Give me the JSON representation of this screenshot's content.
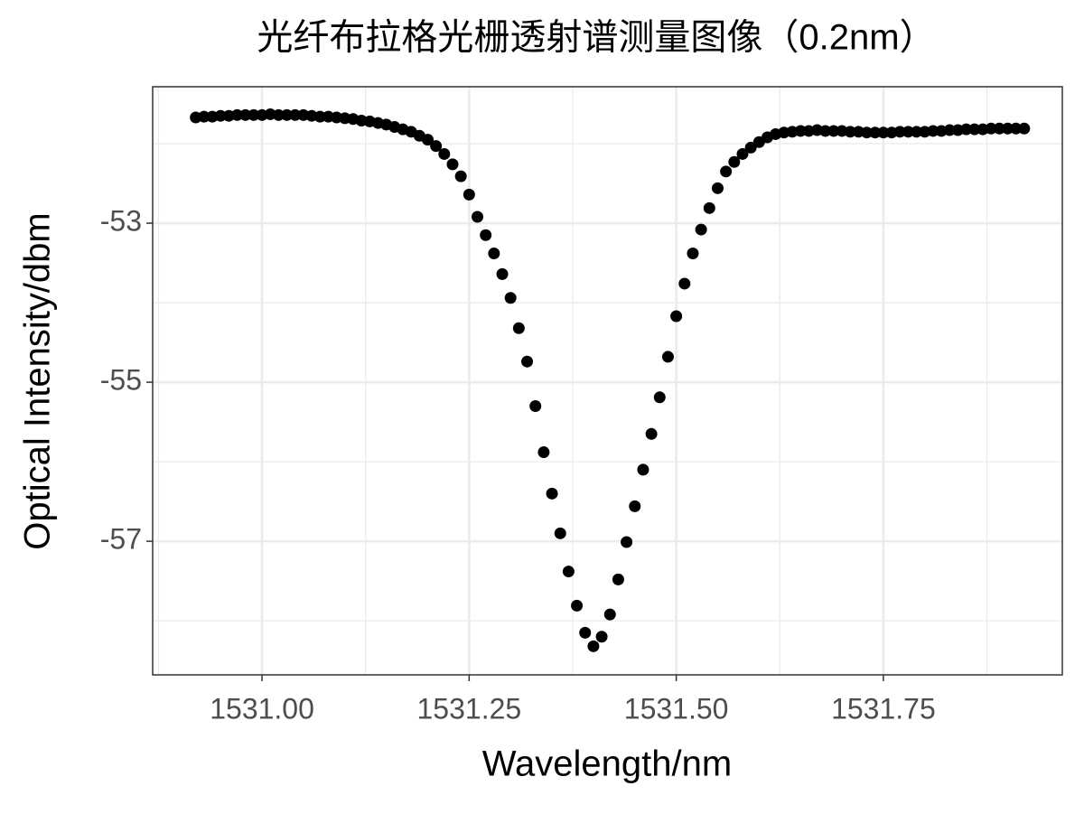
{
  "chart_data": {
    "type": "scatter",
    "title": "光纤布拉格光栅透射谱测量图像（0.2nm）",
    "x_label": "Wavelength/nm",
    "y_label": "Optical Intensity/dbm",
    "color": "#000000",
    "grid": true,
    "xlim": [
      1530.868,
      1531.966
    ],
    "ylim": [
      -58.68,
      -51.284
    ],
    "xticks": [
      {
        "value": 1531,
        "label": "1531.00"
      },
      1531.25,
      {
        "value": 1531.5,
        "label": "1531.50"
      },
      1531.75
    ],
    "yticks": [
      -57,
      -55,
      -53
    ],
    "xminor": [
      1530.875,
      1531.125,
      1531.375,
      1531.625,
      1531.875
    ],
    "yminor": [
      -58,
      -56,
      -54,
      -52
    ],
    "x": [
      1530.92,
      1530.93,
      1530.94,
      1530.95,
      1530.96,
      1530.97,
      1530.98,
      1530.99,
      1531.0,
      1531.01,
      1531.02,
      1531.03,
      1531.04,
      1531.05,
      1531.06,
      1531.07,
      1531.08,
      1531.09,
      1531.1,
      1531.11,
      1531.12,
      1531.13,
      1531.14,
      1531.15,
      1531.16,
      1531.17,
      1531.18,
      1531.19,
      1531.2,
      1531.21,
      1531.22,
      1531.23,
      1531.24,
      1531.25,
      1531.26,
      1531.27,
      1531.28,
      1531.29,
      1531.3,
      1531.31,
      1531.32,
      1531.33,
      1531.34,
      1531.35,
      1531.36,
      1531.37,
      1531.38,
      1531.39,
      1531.4,
      1531.41,
      1531.42,
      1531.43,
      1531.44,
      1531.45,
      1531.46,
      1531.47,
      1531.48,
      1531.49,
      1531.5,
      1531.51,
      1531.52,
      1531.53,
      1531.54,
      1531.55,
      1531.56,
      1531.57,
      1531.58,
      1531.59,
      1531.6,
      1531.61,
      1531.62,
      1531.63,
      1531.64,
      1531.65,
      1531.66,
      1531.67,
      1531.68,
      1531.69,
      1531.7,
      1531.71,
      1531.72,
      1531.73,
      1531.74,
      1531.75,
      1531.76,
      1531.77,
      1531.78,
      1531.79,
      1531.8,
      1531.81,
      1531.82,
      1531.83,
      1531.84,
      1531.85,
      1531.86,
      1531.87,
      1531.88,
      1531.89,
      1531.9,
      1531.91,
      1531.92
    ],
    "values": [
      -51.67,
      -51.66,
      -51.66,
      -51.65,
      -51.65,
      -51.64,
      -51.64,
      -51.64,
      -51.64,
      -51.63,
      -51.64,
      -51.64,
      -51.64,
      -51.64,
      -51.65,
      -51.66,
      -51.66,
      -51.67,
      -51.68,
      -51.69,
      -51.71,
      -51.72,
      -51.74,
      -51.76,
      -51.79,
      -51.82,
      -51.85,
      -51.9,
      -51.95,
      -52.03,
      -52.13,
      -52.26,
      -52.41,
      -52.64,
      -52.92,
      -53.15,
      -53.38,
      -53.64,
      -53.94,
      -54.32,
      -54.74,
      -55.3,
      -55.88,
      -56.4,
      -56.9,
      -57.38,
      -57.81,
      -58.15,
      -58.32,
      -58.2,
      -57.92,
      -57.48,
      -57.01,
      -56.56,
      -56.1,
      -55.65,
      -55.19,
      -54.68,
      -54.17,
      -53.76,
      -53.38,
      -53.08,
      -52.81,
      -52.56,
      -52.35,
      -52.23,
      -52.13,
      -52.05,
      -51.98,
      -51.92,
      -51.88,
      -51.86,
      -51.85,
      -51.84,
      -51.84,
      -51.83,
      -51.84,
      -51.84,
      -51.84,
      -51.85,
      -51.85,
      -51.86,
      -51.86,
      -51.86,
      -51.86,
      -51.85,
      -51.85,
      -51.85,
      -51.85,
      -51.84,
      -51.84,
      -51.83,
      -51.83,
      -51.82,
      -51.82,
      -51.82,
      -51.81,
      -51.81,
      -51.81,
      -51.81,
      -51.81
    ]
  }
}
